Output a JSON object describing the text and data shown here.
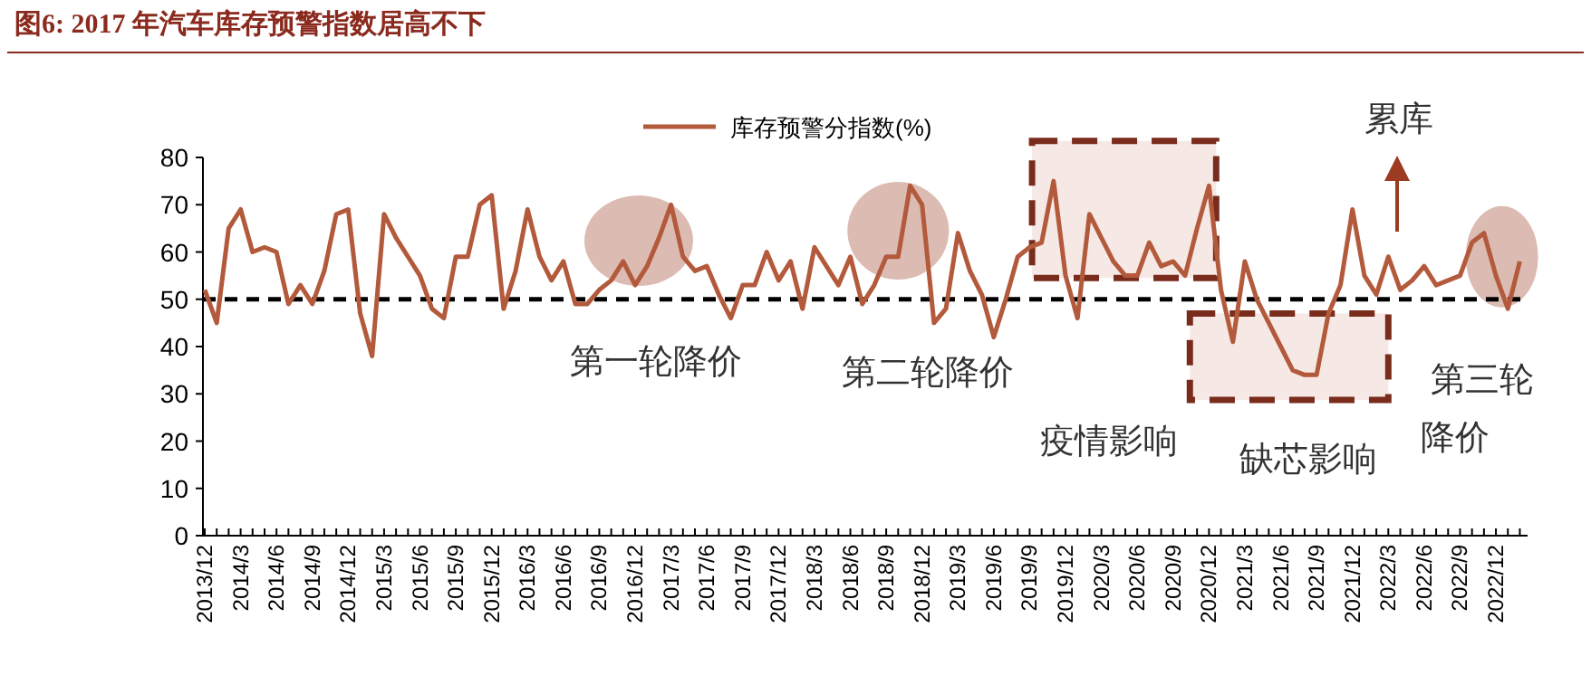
{
  "chart_data": {
    "type": "line",
    "title": "图6:  2017 年汽车库存预警指数居高不下",
    "categories": [
      "2013/12",
      null,
      null,
      "2014/3",
      null,
      null,
      "2014/6",
      null,
      null,
      "2014/9",
      null,
      null,
      "2014/12",
      null,
      null,
      "2015/3",
      null,
      null,
      "2015/6",
      null,
      null,
      "2015/9",
      null,
      null,
      "2015/12",
      null,
      null,
      "2016/3",
      null,
      null,
      "2016/6",
      null,
      null,
      "2016/9",
      null,
      null,
      "2016/12",
      null,
      null,
      "2017/3",
      null,
      null,
      "2017/6",
      null,
      null,
      "2017/9",
      null,
      null,
      "2017/12",
      null,
      null,
      "2018/3",
      null,
      null,
      "2018/6",
      null,
      null,
      "2018/9",
      null,
      null,
      "2018/12",
      null,
      null,
      "2019/3",
      null,
      null,
      "2019/6",
      null,
      null,
      "2019/9",
      null,
      null,
      "2019/12",
      null,
      null,
      "2020/3",
      null,
      null,
      "2020/6",
      null,
      null,
      "2020/9",
      null,
      null,
      "2020/12",
      null,
      null,
      "2021/3",
      null,
      null,
      "2021/6",
      null,
      null,
      "2021/9",
      null,
      null,
      "2021/12",
      null,
      null,
      "2022/3",
      null,
      null,
      "2022/6",
      null,
      null,
      "2022/9",
      null,
      null,
      "2022/12",
      null,
      null
    ],
    "series": [
      {
        "name": "库存预警分指数(%)",
        "color": "#b35a3c",
        "values": [
          52,
          45,
          65,
          69,
          60,
          61,
          60,
          49,
          53,
          49,
          56,
          68,
          69,
          47,
          38,
          68,
          63,
          59,
          55,
          48,
          46,
          59,
          59,
          70,
          72,
          48,
          56,
          69,
          59,
          54,
          58,
          49,
          49,
          52,
          54,
          58,
          53,
          57,
          63,
          70,
          59,
          56,
          57,
          51,
          46,
          53,
          53,
          60,
          54,
          58,
          48,
          61,
          57,
          53,
          59,
          49,
          53,
          59,
          59,
          74,
          70,
          45,
          48,
          64,
          56,
          51,
          42,
          50,
          59,
          61,
          62,
          75,
          55,
          46,
          68,
          63,
          58,
          55,
          55,
          62,
          57,
          58,
          55,
          65,
          74,
          52,
          41,
          58,
          50,
          45,
          40,
          35,
          34,
          34,
          47,
          53,
          69,
          55,
          51,
          59,
          52,
          54,
          57,
          53,
          54,
          55,
          62,
          64,
          55,
          48,
          58
        ]
      }
    ],
    "ylim": [
      0,
      80
    ],
    "yticks": [
      0,
      10,
      20,
      30,
      40,
      50,
      60,
      70,
      80
    ],
    "ref_lines": [
      {
        "axis": "y",
        "value": 50,
        "color": "#000000",
        "line_style": "dashed"
      }
    ],
    "annotations": [
      "第一轮降价",
      "第二轮降价",
      "疫情影响",
      "缺芯影响",
      "第三轮",
      "降价",
      "累库"
    ],
    "legend": "top",
    "marker": "none",
    "line_style": "solid",
    "grid": false
  }
}
